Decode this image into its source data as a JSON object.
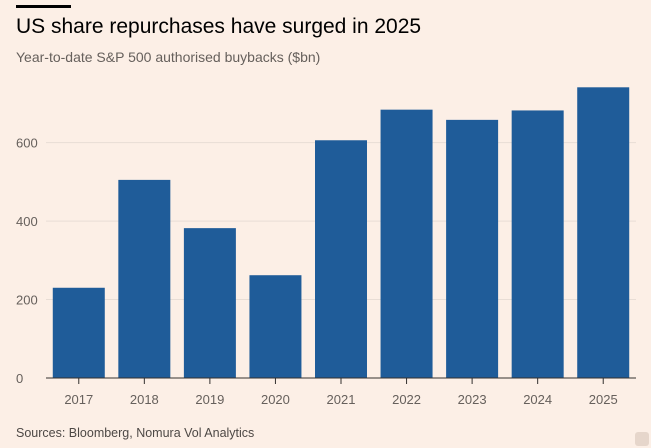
{
  "header": {
    "title": "US share repurchases have surged in 2025",
    "subtitle": "Year-to-date S&P 500 authorised buybacks ($bn)"
  },
  "footer": {
    "source": "Sources: Bloomberg, Nomura Vol Analytics"
  },
  "colors": {
    "bar": "#1f5c99",
    "grid": "#e8ddd5",
    "axis": "#33302e",
    "tick_text": "#66605c",
    "background": "#fcefe6"
  },
  "chart_data": {
    "type": "bar",
    "title": "US share repurchases have surged in 2025",
    "subtitle": "Year-to-date S&P 500 authorised buybacks ($bn)",
    "xlabel": "",
    "ylabel": "",
    "categories": [
      "2017",
      "2018",
      "2019",
      "2020",
      "2021",
      "2022",
      "2023",
      "2024",
      "2025"
    ],
    "values": [
      230,
      505,
      382,
      262,
      606,
      684,
      658,
      682,
      741
    ],
    "ylim": [
      0,
      780
    ],
    "yticks": [
      0,
      200,
      400,
      600
    ],
    "grid": true,
    "legend": "none"
  }
}
